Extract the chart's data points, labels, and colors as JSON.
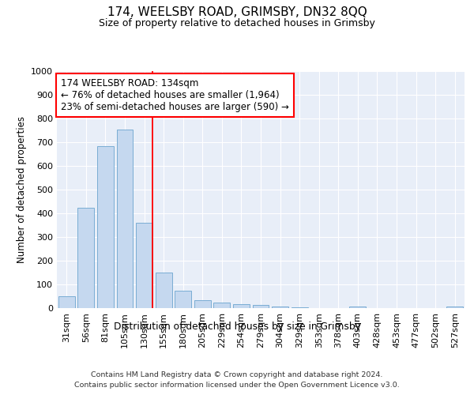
{
  "title": "174, WEELSBY ROAD, GRIMSBY, DN32 8QQ",
  "subtitle": "Size of property relative to detached houses in Grimsby",
  "xlabel": "Distribution of detached houses by size in Grimsby",
  "ylabel": "Number of detached properties",
  "categories": [
    "31sqm",
    "56sqm",
    "81sqm",
    "105sqm",
    "130sqm",
    "155sqm",
    "180sqm",
    "205sqm",
    "229sqm",
    "254sqm",
    "279sqm",
    "304sqm",
    "329sqm",
    "353sqm",
    "378sqm",
    "403sqm",
    "428sqm",
    "453sqm",
    "477sqm",
    "502sqm",
    "527sqm"
  ],
  "values": [
    50,
    425,
    685,
    755,
    360,
    150,
    75,
    35,
    25,
    18,
    15,
    8,
    5,
    0,
    0,
    8,
    0,
    0,
    0,
    0,
    8
  ],
  "bar_color": "#c5d8ef",
  "bar_edge_color": "#7aadd4",
  "red_line_index": 4,
  "annotation_line1": "174 WEELSBY ROAD: 134sqm",
  "annotation_line2": "← 76% of detached houses are smaller (1,964)",
  "annotation_line3": "23% of semi-detached houses are larger (590) →",
  "ylim": [
    0,
    1000
  ],
  "yticks": [
    0,
    100,
    200,
    300,
    400,
    500,
    600,
    700,
    800,
    900,
    1000
  ],
  "background_color": "#e8eef8",
  "grid_color": "#ffffff",
  "footer_line1": "Contains HM Land Registry data © Crown copyright and database right 2024.",
  "footer_line2": "Contains public sector information licensed under the Open Government Licence v3.0."
}
